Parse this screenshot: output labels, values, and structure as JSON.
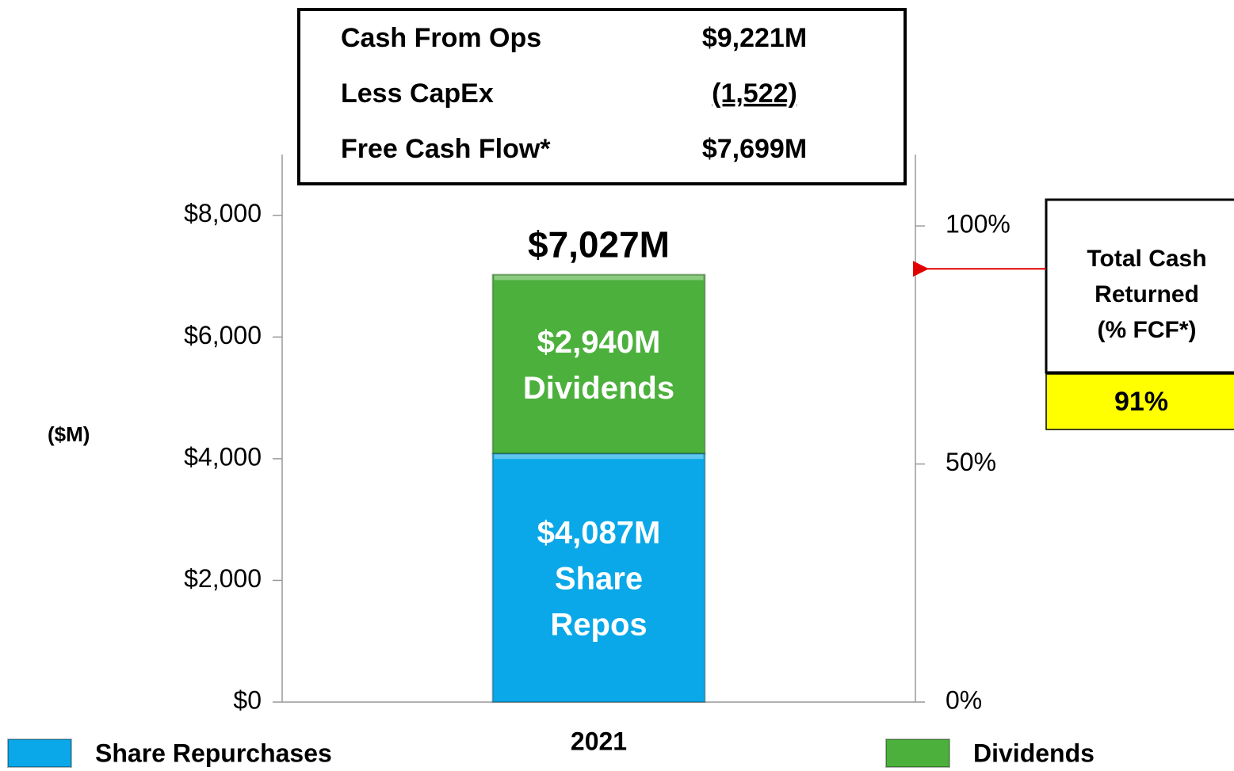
{
  "chart_data": {
    "type": "bar",
    "stacked": true,
    "categories": [
      "2021"
    ],
    "series": [
      {
        "name": "Share Repurchases",
        "color": "#0aa8e8",
        "values": [
          4087
        ],
        "value_labels": [
          "$4,087M"
        ],
        "segment_text": [
          "Share",
          "Repos"
        ]
      },
      {
        "name": "Dividends",
        "color": "#4cb03c",
        "values": [
          2940
        ],
        "value_labels": [
          "$2,940M"
        ],
        "segment_text": [
          "Dividends"
        ]
      }
    ],
    "total": {
      "value": 7027,
      "label": "$7,027M"
    },
    "ylabel": "($M)",
    "ylim": [
      0,
      9000
    ],
    "yticks": [
      {
        "value": 0,
        "label": "$0"
      },
      {
        "value": 2000,
        "label": "$2,000"
      },
      {
        "value": 4000,
        "label": "$4,000"
      },
      {
        "value": 6000,
        "label": "$6,000"
      },
      {
        "value": 8000,
        "label": "$8,000"
      }
    ],
    "y2lim": [
      0,
      115
    ],
    "y2ticks": [
      {
        "value": 0,
        "label": "0%"
      },
      {
        "value": 50,
        "label": "50%"
      },
      {
        "value": 100,
        "label": "100%"
      }
    ],
    "summary": [
      [
        "Cash From Ops",
        "$9,221M"
      ],
      [
        "Less CapEx",
        "(1,522)"
      ],
      [
        "Free Cash Flow*",
        "$7,699M"
      ]
    ],
    "callout": {
      "lines": [
        "Total Cash",
        "Returned",
        "(% FCF*)"
      ],
      "value": 91,
      "value_label": "91%",
      "axis": "y2"
    }
  }
}
